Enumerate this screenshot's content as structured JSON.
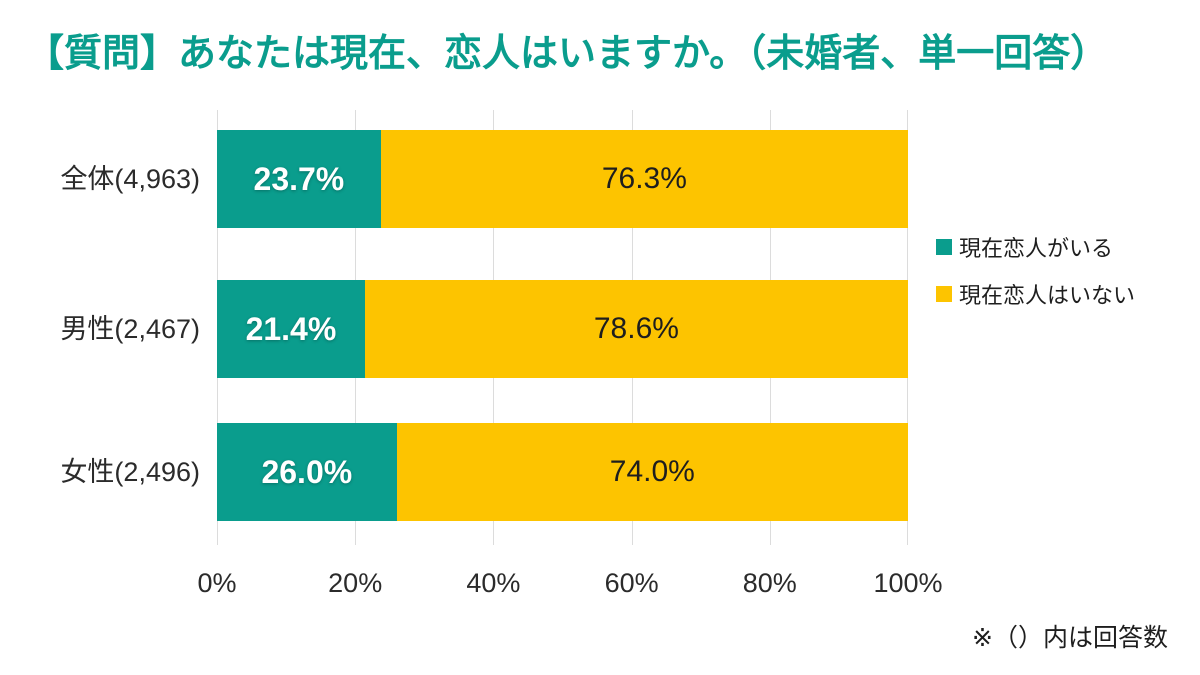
{
  "title": "【質問】あなたは現在、恋人はいますか。（未婚者、単一回答）",
  "footnote": "※（）内は回答数",
  "legend": [
    {
      "label": "現在恋人がいる",
      "color": "#0a9d8d"
    },
    {
      "label": "現在恋人はいない",
      "color": "#fdc400"
    }
  ],
  "chart_data": {
    "type": "bar",
    "orientation": "horizontal",
    "stacked": true,
    "title": "【質問】あなたは現在、恋人はいますか。（未婚者、単一回答）",
    "categories": [
      "全体(4,963)",
      "男性(2,467)",
      "女性(2,496)"
    ],
    "series": [
      {
        "name": "現在恋人がいる",
        "color": "#0a9d8d",
        "values": [
          23.7,
          21.4,
          26.0
        ]
      },
      {
        "name": "現在恋人はいない",
        "color": "#fdc400",
        "values": [
          76.3,
          78.6,
          74.0
        ]
      }
    ],
    "rows": [
      {
        "label": "全体(4,963)",
        "values": [
          23.7,
          76.3
        ],
        "display": [
          "23.7%",
          "76.3%"
        ]
      },
      {
        "label": "男性(2,467)",
        "values": [
          21.4,
          78.6
        ],
        "display": [
          "21.4%",
          "78.6%"
        ]
      },
      {
        "label": "女性(2,496)",
        "values": [
          26.0,
          74.0
        ],
        "display": [
          "26.0%",
          "74.0%"
        ]
      }
    ],
    "x_ticks": [
      "0%",
      "20%",
      "40%",
      "60%",
      "80%",
      "100%"
    ],
    "xlim": [
      0,
      100
    ],
    "grid": true,
    "legend_position": "right",
    "colors": {
      "series1": "#0a9d8d",
      "series2": "#fdc400",
      "title": "#0a9d8d",
      "grid": "#dcdcdc"
    }
  }
}
